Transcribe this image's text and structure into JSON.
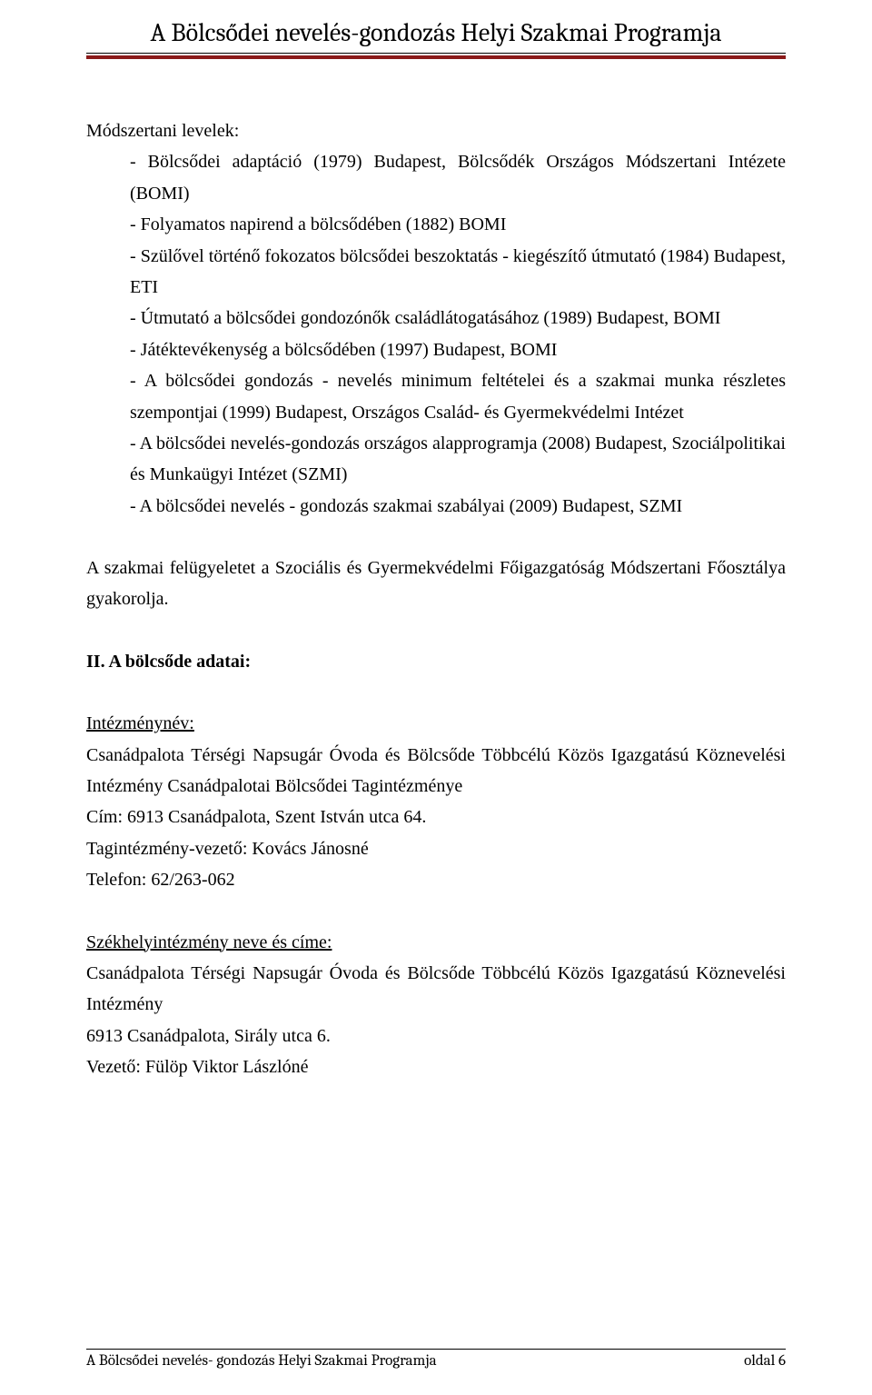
{
  "document": {
    "header_title": "A Bölcsődei nevelés-gondozás Helyi Szakmai Programja",
    "header_rule_color": "#8b1a1a",
    "body_font": "Times New Roman",
    "body_fontsize": 20,
    "body_lineheight": 1.72,
    "text_color": "#000000",
    "background_color": "#ffffff",
    "section1": {
      "intro_label": "Módszertani levelek:",
      "items": [
        "- Bölcsődei adaptáció (1979) Budapest, Bölcsődék Országos Módszertani Intézete (BOMI)",
        "- Folyamatos napirend a bölcsődében (1882) BOMI",
        "- Szülővel történő fokozatos bölcsődei beszoktatás - kiegészítő útmutató (1984) Budapest, ETI",
        "- Útmutató a bölcsődei gondozónők családlátogatásához (1989) Budapest, BOMI",
        "- Játéktevékenység a bölcsődében (1997) Budapest, BOMI",
        "- A bölcsődei gondozás - nevelés minimum feltételei és a szakmai munka részletes szempontjai (1999) Budapest, Országos Család- és Gyermekvédelmi Intézet",
        "- A bölcsődei nevelés-gondozás országos alapprogramja (2008) Budapest, Szociálpolitikai és Munkaügyi Intézet (SZMI)",
        "- A bölcsődei nevelés - gondozás szakmai szabályai (2009) Budapest, SZMI"
      ]
    },
    "paragraph2": "A szakmai felügyeletet a Szociális és Gyermekvédelmi Főigazgatóság Módszertani Főosztálya gyakorolja.",
    "section2_heading": "II. A bölcsőde adatai:",
    "institution": {
      "label": "Intézménynév:",
      "line1": "Csanádpalota Térségi Napsugár Óvoda és Bölcsőde Többcélú Közös Igazgatású Köznevelési Intézmény Csanádpalotai Bölcsődei Tagintézménye",
      "address": "Cím: 6913 Csanádpalota, Szent István utca 64.",
      "leader": "Tagintézmény-vezető: Kovács Jánosné",
      "phone": "Telefon: 62/263-062"
    },
    "headquarters": {
      "label": "Székhelyintézmény neve és címe:",
      "line1": "Csanádpalota Térségi Napsugár Óvoda és Bölcsőde Többcélú Közös Igazgatású Köznevelési Intézmény",
      "address": "6913 Csanádpalota, Sirály utca 6.",
      "leader": "Vezető: Fülöp Viktor Lászlóné"
    },
    "footer": {
      "left": "A Bölcsődei nevelés- gondozás Helyi Szakmai Programja",
      "right": "oldal 6"
    }
  }
}
